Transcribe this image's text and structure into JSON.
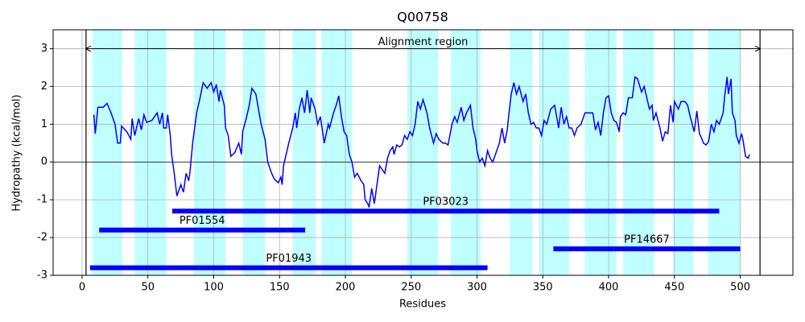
{
  "chart_data": {
    "type": "line",
    "title": "Q00758",
    "xlabel": "Residues",
    "ylabel": "Hydropathy (kcal/mol)",
    "xlim": [
      -22,
      540
    ],
    "ylim": [
      -3,
      3.5
    ],
    "xticks": [
      0,
      50,
      100,
      150,
      200,
      250,
      300,
      350,
      400,
      450,
      500
    ],
    "yticks": [
      -3,
      -2,
      -1,
      0,
      1,
      2,
      3
    ],
    "grid": true,
    "color": "#0000ff",
    "span_color": "#c0ffff",
    "domain_color": "#0000ff",
    "x": [
      9,
      10,
      12,
      16,
      19,
      22,
      25,
      27,
      29,
      30,
      34,
      37,
      38,
      40,
      43,
      45,
      47,
      49,
      53,
      57,
      59,
      61,
      62,
      64,
      65,
      67,
      68,
      70,
      72,
      75,
      77,
      79,
      81,
      82,
      84,
      87,
      89,
      92,
      95,
      98,
      100,
      102,
      104,
      105,
      108,
      109,
      111,
      113,
      116,
      119,
      121,
      122,
      125,
      127,
      129,
      132,
      134,
      136,
      139,
      141,
      144,
      146,
      149,
      151,
      152,
      153,
      157,
      160,
      162,
      163,
      165,
      167,
      169,
      171,
      173,
      174,
      177,
      179,
      181,
      184,
      187,
      188,
      191,
      193,
      195,
      197,
      199,
      201,
      203,
      205,
      207,
      209,
      212,
      214,
      215,
      217,
      218,
      220,
      222,
      224,
      226,
      228,
      230,
      232,
      234,
      236,
      237,
      239,
      241,
      243,
      245,
      247,
      249,
      251,
      253,
      255,
      257,
      259,
      262,
      264,
      267,
      269,
      271,
      274,
      276,
      278,
      281,
      283,
      285,
      288,
      290,
      292,
      295,
      297,
      299,
      300,
      302,
      304,
      306,
      308,
      310,
      312,
      315,
      317,
      319,
      321,
      323,
      324,
      326,
      328,
      330,
      332,
      335,
      337,
      339,
      341,
      343,
      345,
      347,
      349,
      351,
      353,
      356,
      359,
      360,
      362,
      364,
      366,
      368,
      370,
      372,
      374,
      376,
      379,
      382,
      386,
      388,
      390,
      392,
      394,
      396,
      398,
      400,
      402,
      404,
      406,
      408,
      409,
      411,
      413,
      415,
      418,
      420,
      422,
      425,
      427,
      429,
      431,
      433,
      434,
      436,
      439,
      441,
      443,
      445,
      447,
      449,
      450,
      453,
      455,
      458,
      460,
      462,
      465,
      467,
      469,
      471,
      472,
      474,
      476,
      478,
      480,
      482,
      484,
      487,
      488,
      490,
      491,
      493,
      494,
      496,
      497,
      499,
      501,
      502,
      504,
      506,
      507
    ],
    "values": [
      1.25,
      0.75,
      1.45,
      1.45,
      1.55,
      1.3,
      1.0,
      0.5,
      0.5,
      0.95,
      0.8,
      0.6,
      1.15,
      0.7,
      1.15,
      0.85,
      1.25,
      1.05,
      1.1,
      1.3,
      1.0,
      1.3,
      0.9,
      0.9,
      1.25,
      0.7,
      0.2,
      -0.3,
      -0.9,
      -0.6,
      -0.8,
      -0.3,
      -0.5,
      -0.25,
      0.5,
      1.3,
      1.6,
      2.1,
      1.95,
      2.1,
      1.85,
      2.05,
      1.6,
      1.9,
      1.5,
      0.9,
      0.7,
      0.15,
      0.25,
      0.5,
      0.2,
      0.8,
      1.2,
      1.5,
      1.95,
      1.8,
      1.4,
      1.0,
      0.6,
      0.0,
      -0.3,
      -0.45,
      -0.55,
      -0.4,
      -0.6,
      -0.1,
      0.5,
      0.9,
      1.3,
      0.9,
      1.4,
      1.7,
      1.3,
      1.9,
      1.3,
      1.7,
      1.4,
      1.0,
      1.2,
      0.5,
      1.0,
      0.9,
      1.3,
      1.5,
      1.75,
      1.2,
      0.8,
      0.7,
      0.2,
      0.0,
      -0.4,
      -0.3,
      -0.5,
      -0.6,
      -1.0,
      -1.1,
      -1.2,
      -0.7,
      -1.1,
      -0.6,
      -0.1,
      -0.2,
      -0.3,
      0.1,
      0.3,
      0.4,
      0.2,
      0.45,
      0.4,
      0.45,
      0.7,
      0.6,
      0.8,
      0.7,
      1.0,
      1.6,
      1.4,
      1.65,
      1.3,
      0.9,
      0.5,
      0.75,
      0.6,
      0.5,
      0.5,
      0.45,
      1.0,
      1.2,
      1.05,
      1.45,
      1.1,
      1.3,
      1.5,
      0.9,
      0.6,
      0.3,
      0.0,
      0.1,
      -0.1,
      0.3,
      0.1,
      0.0,
      0.3,
      0.5,
      0.9,
      0.5,
      0.85,
      1.2,
      1.8,
      2.1,
      1.8,
      2.0,
      1.6,
      1.8,
      1.3,
      1.0,
      1.05,
      0.9,
      0.9,
      0.7,
      1.1,
      1.0,
      1.4,
      1.5,
      1.3,
      0.9,
      1.45,
      1.0,
      1.2,
      0.9,
      0.9,
      0.7,
      0.9,
      1.0,
      1.3,
      1.3,
      1.3,
      0.85,
      1.05,
      0.7,
      1.3,
      1.7,
      1.75,
      1.3,
      1.1,
      1.05,
      0.8,
      1.2,
      1.3,
      1.25,
      1.7,
      1.7,
      2.25,
      2.2,
      1.85,
      2.0,
      1.7,
      1.4,
      1.5,
      1.1,
      1.3,
      0.9,
      0.55,
      0.8,
      0.75,
      1.5,
      1.05,
      1.6,
      1.4,
      1.6,
      1.6,
      1.5,
      1.2,
      0.8,
      1.35,
      0.75,
      0.6,
      0.5,
      0.45,
      0.55,
      1.0,
      0.8,
      1.1,
      1.0,
      1.3,
      1.7,
      2.25,
      1.8,
      2.2,
      1.3,
      1.1,
      0.7,
      0.5,
      0.75,
      0.6,
      0.15,
      0.1,
      0.2
    ],
    "spans": [
      {
        "start": 8,
        "end": 30.5
      },
      {
        "start": 40,
        "end": 64
      },
      {
        "start": 85,
        "end": 109
      },
      {
        "start": 122,
        "end": 139
      },
      {
        "start": 160,
        "end": 177.5
      },
      {
        "start": 182,
        "end": 205
      },
      {
        "start": 247,
        "end": 270.5
      },
      {
        "start": 280,
        "end": 303
      },
      {
        "start": 325,
        "end": 342
      },
      {
        "start": 347,
        "end": 370
      },
      {
        "start": 382,
        "end": 406
      },
      {
        "start": 411,
        "end": 434.5
      },
      {
        "start": 449,
        "end": 464.5
      },
      {
        "start": 475.5,
        "end": 500
      }
    ],
    "alignment": {
      "label": "Alignment region",
      "start": 3,
      "end": 515,
      "y": 3
    },
    "domains": [
      {
        "name": "PF03023",
        "start": 68.5,
        "end": 484,
        "y": -1.3
      },
      {
        "name": "PF01554",
        "start": 13,
        "end": 169.5,
        "y": -1.8
      },
      {
        "name": "PF14667",
        "start": 358,
        "end": 500,
        "y": -2.3
      },
      {
        "name": "PF01943",
        "start": 6,
        "end": 308,
        "y": -2.8
      }
    ]
  }
}
